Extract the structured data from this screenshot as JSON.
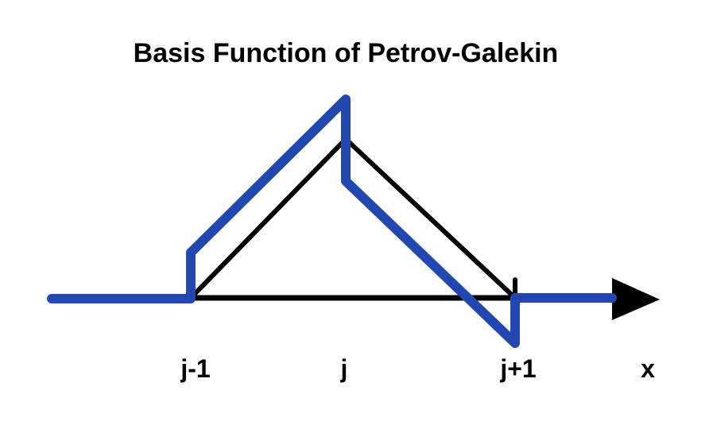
{
  "title": "Basis Function of Petrov-Galekin",
  "x_labels": {
    "left_node": "j-1",
    "center_node": "j",
    "right_node": "j+1",
    "axis": "x"
  },
  "colors": {
    "galerkin_hat": "#000000",
    "petrov_galerkin": "#2347b0",
    "axis": "#000000",
    "background": "#ffffff"
  }
}
